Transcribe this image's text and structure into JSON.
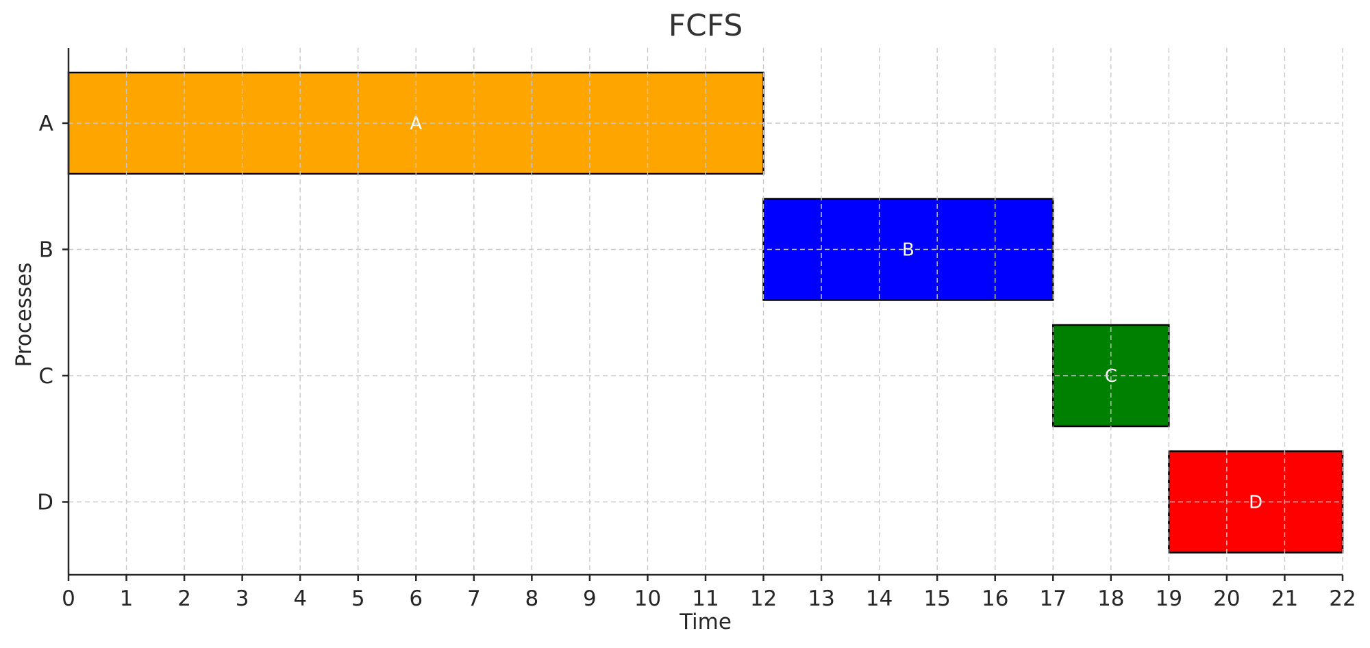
{
  "chart_data": {
    "type": "gantt",
    "title": "FCFS",
    "xlabel": "Time",
    "ylabel": "Processes",
    "xlim": [
      0,
      22
    ],
    "xticks": [
      0,
      1,
      2,
      3,
      4,
      5,
      6,
      7,
      8,
      9,
      10,
      11,
      12,
      13,
      14,
      15,
      16,
      17,
      18,
      19,
      20,
      21,
      22
    ],
    "categories": [
      "A",
      "B",
      "C",
      "D"
    ],
    "grid": true,
    "tasks": [
      {
        "process": "A",
        "label": "A",
        "start": 0,
        "end": 12,
        "color": "#ffa500"
      },
      {
        "process": "B",
        "label": "B",
        "start": 12,
        "end": 17,
        "color": "#0000ff"
      },
      {
        "process": "C",
        "label": "C",
        "start": 17,
        "end": 19,
        "color": "#008000"
      },
      {
        "process": "D",
        "label": "D",
        "start": 19,
        "end": 22,
        "color": "#ff0000"
      }
    ]
  }
}
